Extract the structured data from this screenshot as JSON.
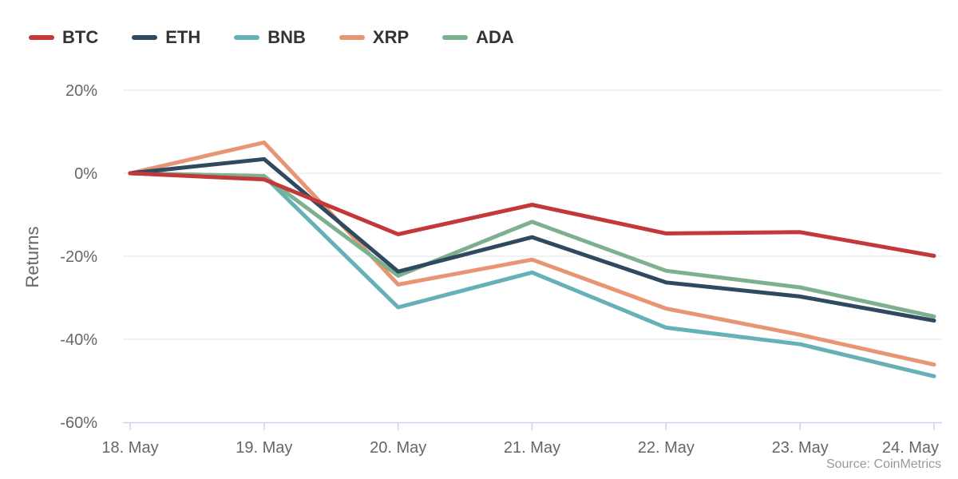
{
  "chart_data": {
    "type": "line",
    "title": "",
    "xlabel": "",
    "ylabel": "Returns",
    "ylim": [
      -60,
      20
    ],
    "yticks": [
      20,
      0,
      -20,
      -40,
      -60
    ],
    "ytick_suffix": "%",
    "grid": true,
    "legend": "top-left",
    "categories": [
      "18. May",
      "19. May",
      "20. May",
      "21. May",
      "22. May",
      "23. May",
      "24. May"
    ],
    "series": [
      {
        "name": "BTC",
        "color": "#c33838",
        "values": [
          0,
          -1.5,
          -14.7,
          -7.6,
          -14.5,
          -14.2,
          -19.9
        ]
      },
      {
        "name": "ETH",
        "color": "#2f4a60",
        "values": [
          0,
          3.4,
          -23.7,
          -15.4,
          -26.3,
          -29.7,
          -35.5
        ]
      },
      {
        "name": "BNB",
        "color": "#66b0b8",
        "values": [
          0,
          -0.7,
          -32.3,
          -23.9,
          -37.2,
          -41.2,
          -48.9
        ]
      },
      {
        "name": "XRP",
        "color": "#e89574",
        "values": [
          0,
          7.4,
          -26.8,
          -20.8,
          -32.6,
          -38.9,
          -46.1
        ]
      },
      {
        "name": "ADA",
        "color": "#7db08f",
        "values": [
          0,
          -0.7,
          -24.7,
          -11.7,
          -23.5,
          -27.5,
          -34.5
        ]
      }
    ]
  },
  "source": "Source: CoinMetrics",
  "colors": {
    "grid": "#e6e6e6",
    "axis": "#ccd6eb",
    "tick_text": "#666666"
  }
}
